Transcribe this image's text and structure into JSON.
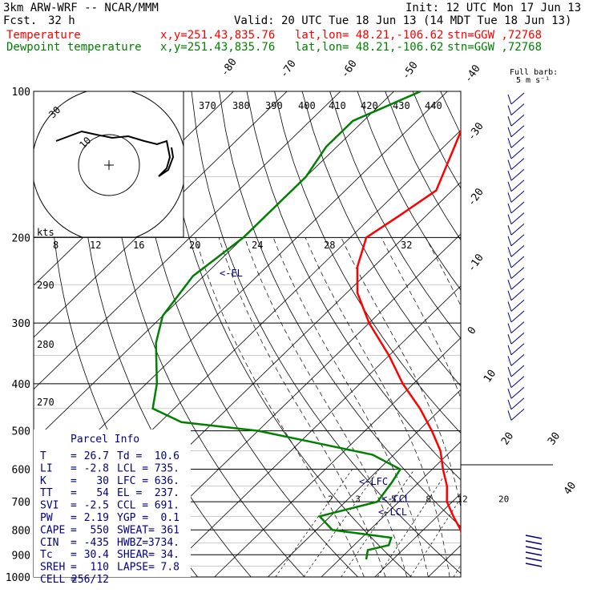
{
  "header": {
    "model": "3km ARW-WRF -- NCAR/MMM",
    "init": "Init: 12 UTC Mon 17 Jun 13",
    "fcst_label": "Fcst.",
    "fcst_value": "32 h",
    "valid": "Valid: 20 UTC Tue 18 Jun 13 (14 MDT Tue 18 Jun 13)",
    "temp_label": "Temperature",
    "dew_label": "Dewpoint temperature",
    "xy": "x,y=251.43,835.76",
    "latlon": "lat,lon= 48.21,-106.62",
    "stn": "stn=GGW ,72768",
    "temp_color": "#ff0000",
    "dew_color": "#008000"
  },
  "barb_legend": {
    "line1": "Full barb:",
    "line2": "5 m s⁻¹"
  },
  "hodograph": {
    "units": "kts",
    "ring_labels": [
      "10",
      "30"
    ]
  },
  "parcel_info": {
    "title": "Parcel Info",
    "rows": [
      [
        "T",
        "=",
        "26.7",
        "Td =",
        "10.6"
      ],
      [
        "LI",
        "=",
        "-2.8",
        "LCL =",
        "735."
      ],
      [
        "K",
        "=",
        "30",
        "LFC =",
        "636."
      ],
      [
        "TT",
        "=",
        "54",
        "EL =",
        "237."
      ],
      [
        "SVI",
        "=",
        "-2.5",
        "CCL =",
        "691."
      ],
      [
        "PW",
        "=",
        "2.19",
        "YGP =",
        "0.1"
      ],
      [
        "CAPE",
        "=",
        "550",
        "SWEAT=",
        "361"
      ],
      [
        "CIN",
        "=",
        "-435",
        "HWBZ=",
        "3734."
      ],
      [
        "Tc",
        "=",
        "30.4",
        "SHEAR=",
        "34."
      ],
      [
        "SREH",
        "=",
        "110",
        "LAPSE=",
        "7.8"
      ],
      [
        "CELL",
        "=",
        "256/12",
        "",
        ""
      ]
    ]
  },
  "chart_data": {
    "type": "line",
    "chart_kind": "skew-T log-p sounding",
    "y_axis": {
      "quantity": "pressure (hPa)",
      "scale": "log",
      "range": [
        100,
        1000
      ],
      "tick_labels": [
        "100",
        "200",
        "300",
        "400",
        "500",
        "600",
        "700",
        "800",
        "900",
        "1000"
      ]
    },
    "x_axis": {
      "quantity": "temperature (°C)",
      "skewed": true
    },
    "isotherm_labels": [
      "-80",
      "-70",
      "-60",
      "-50",
      "-40",
      "-30",
      "-20",
      "-10",
      "0",
      "10",
      "20",
      "30",
      "40"
    ],
    "dry_adiabat_labels": [
      "370",
      "380",
      "390",
      "400",
      "410",
      "420",
      "430",
      "440",
      "290",
      "280",
      "270"
    ],
    "mixing_ratio_labels": [
      "2",
      "3",
      "5",
      "8",
      "12",
      "20"
    ],
    "hodo_speed_labels": [
      "8",
      "12",
      "16",
      "20",
      "24",
      "28",
      "32"
    ],
    "level_markers": [
      {
        "label": "<-EL",
        "p": 237
      },
      {
        "label": "<-LFC",
        "p": 636
      },
      {
        "label": "<-CCL",
        "p": 691
      },
      {
        "label": "<-LCL",
        "p": 735
      }
    ],
    "series": [
      {
        "name": "Temperature",
        "color": "#ff0000",
        "points": [
          [
            100,
            -60
          ],
          [
            115,
            -61
          ],
          [
            130,
            -58
          ],
          [
            160,
            -53
          ],
          [
            180,
            -55
          ],
          [
            200,
            -57
          ],
          [
            230,
            -53
          ],
          [
            260,
            -48
          ],
          [
            300,
            -40
          ],
          [
            350,
            -30
          ],
          [
            400,
            -22
          ],
          [
            450,
            -14
          ],
          [
            500,
            -7.5
          ],
          [
            550,
            -2
          ],
          [
            600,
            2
          ],
          [
            650,
            6
          ],
          [
            700,
            9
          ],
          [
            750,
            13
          ],
          [
            800,
            17
          ],
          [
            850,
            20
          ],
          [
            900,
            24
          ],
          [
            925,
            26.5
          ]
        ]
      },
      {
        "name": "Dewpoint temperature",
        "color": "#008000",
        "points": [
          [
            100,
            -75
          ],
          [
            115,
            -82
          ],
          [
            130,
            -82
          ],
          [
            150,
            -80
          ],
          [
            200,
            -80
          ],
          [
            240,
            -82
          ],
          [
            290,
            -80
          ],
          [
            330,
            -76
          ],
          [
            400,
            -68
          ],
          [
            450,
            -64
          ],
          [
            480,
            -56
          ],
          [
            500,
            -40
          ],
          [
            560,
            -14
          ],
          [
            600,
            -6
          ],
          [
            640,
            -5
          ],
          [
            700,
            -4
          ],
          [
            750,
            -12
          ],
          [
            800,
            -7
          ],
          [
            830,
            5.5
          ],
          [
            860,
            6.5
          ],
          [
            880,
            3.5
          ],
          [
            920,
            5
          ]
        ]
      }
    ],
    "wind_barbs": {
      "count": 30,
      "note": "5 m/s full barb"
    },
    "grid": true
  }
}
